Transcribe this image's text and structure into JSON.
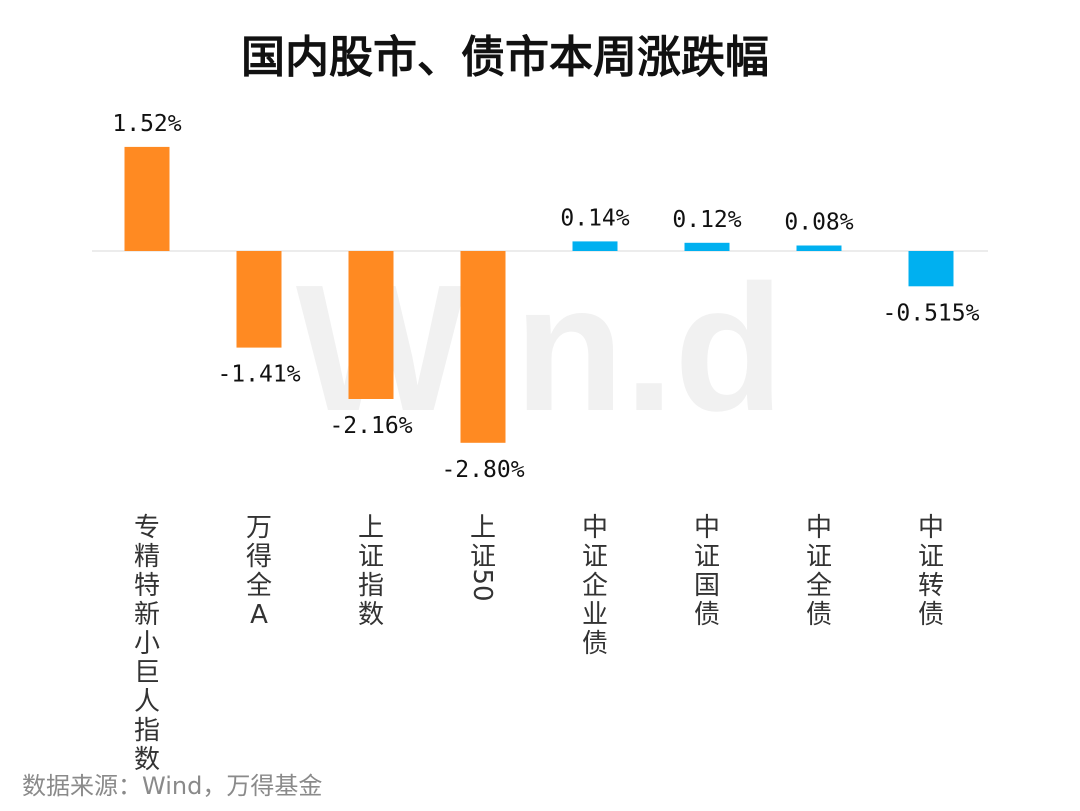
{
  "title": "国内股市、债市本周涨跌幅",
  "source": "数据来源：Wind，万得基金",
  "watermark": "Win.d",
  "colors": {
    "stock": "#FF8A22",
    "bond": "#00B0F0",
    "baseline": "#e6e6e6"
  },
  "chart_data": {
    "type": "bar",
    "title": "国内股市、债市本周涨跌幅",
    "xlabel": "",
    "ylabel": "",
    "unit": "%",
    "grid": false,
    "legend": "none",
    "ylim": [
      -3.0,
      1.8
    ],
    "categories": [
      "专精特新小巨人指数",
      "万得全A",
      "上证指数",
      "上证50",
      "中证企业债",
      "中证国债",
      "中证全债",
      "中证转债"
    ],
    "values": [
      1.52,
      -1.41,
      -2.16,
      -2.8,
      0.14,
      0.12,
      0.08,
      -0.515
    ],
    "labels": [
      "1.52%",
      "-1.41%",
      "-2.16%",
      "-2.80%",
      "0.14%",
      "0.12%",
      "0.08%",
      "-0.515%"
    ],
    "groups": [
      "stock",
      "stock",
      "stock",
      "stock",
      "bond",
      "bond",
      "bond",
      "bond"
    ]
  }
}
